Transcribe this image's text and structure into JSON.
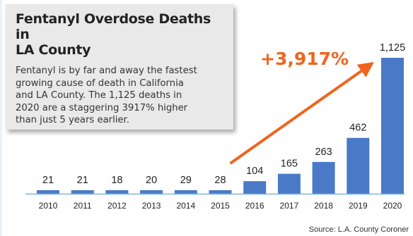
{
  "callout": {
    "title_line1": "Fentanyl Overdose Deaths in",
    "title_line2": "LA County",
    "body_lines": [
      "Fentanyl is by far and away the fastest",
      "growing cause of death in California",
      "and LA County. The 1,125 deaths in",
      "2020 are a staggering 3917% higher",
      "than just 5 years earlier."
    ]
  },
  "source": "Source: L.A. County Coroner",
  "colors": {
    "bar": "#4a7ac7",
    "arrow": "#f0641e",
    "callout_bg": "#e9e9e9",
    "axis": "#7fb6d9"
  },
  "chart_data": {
    "type": "bar",
    "categories": [
      "2010",
      "2011",
      "2012",
      "2013",
      "2014",
      "2015",
      "2016",
      "2017",
      "2018",
      "2019",
      "2020"
    ],
    "values": [
      21,
      21,
      18,
      20,
      29,
      28,
      104,
      165,
      263,
      462,
      1125
    ],
    "data_labels": [
      "21",
      "21",
      "18",
      "20",
      "29",
      "28",
      "104",
      "165",
      "263",
      "462",
      "1,125"
    ],
    "annotation": "+3,917%",
    "arrow_from": "2015",
    "arrow_to": "2020",
    "ylim": [
      0,
      1125
    ],
    "grid": false,
    "legend": "none"
  }
}
